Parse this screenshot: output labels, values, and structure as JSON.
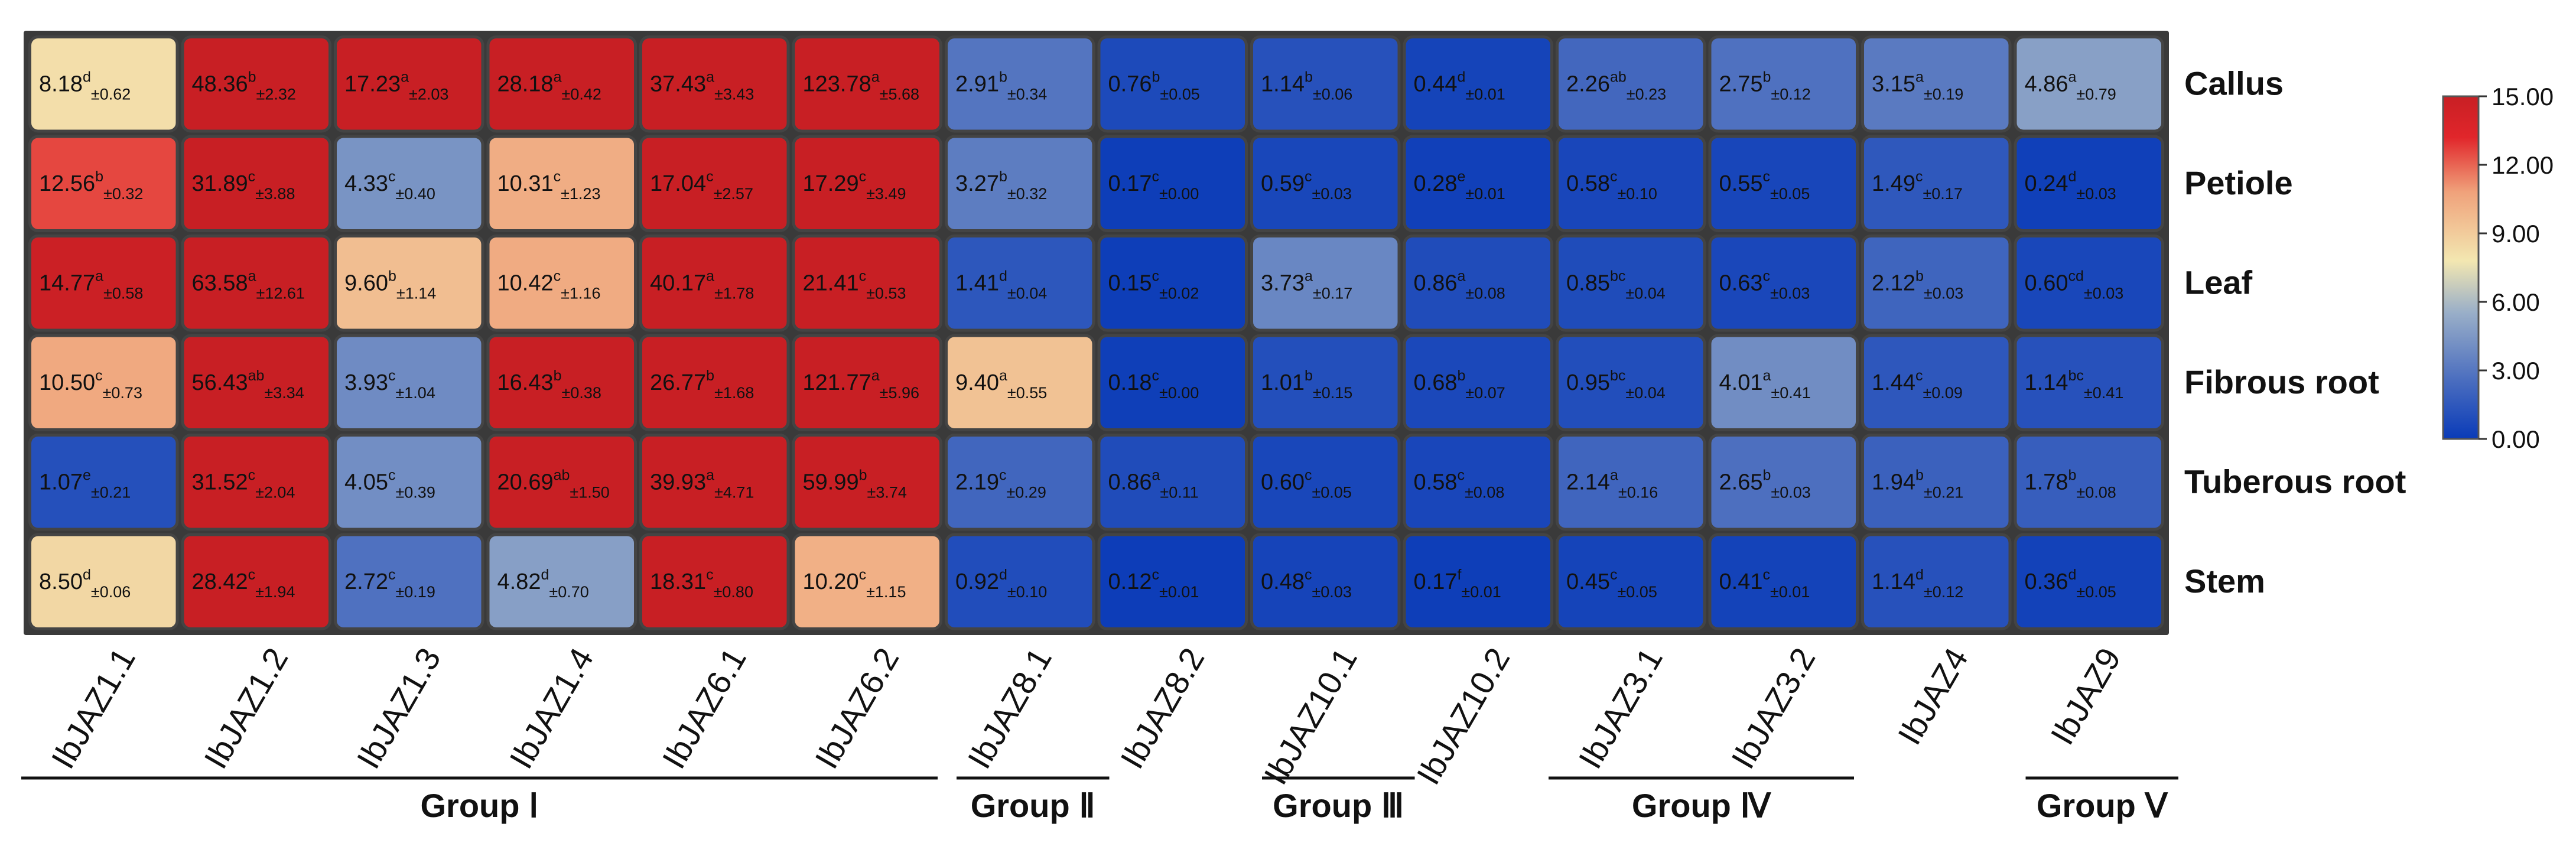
{
  "chart_data": {
    "type": "heatmap",
    "title": "",
    "rows": [
      "Callus",
      "Petiole",
      "Leaf",
      "Fibrous root",
      "Tuberous root",
      "Stem"
    ],
    "columns": [
      "IbJAZ1.1",
      "IbJAZ1.2",
      "IbJAZ1.3",
      "IbJAZ1.4",
      "IbJAZ6.1",
      "IbJAZ6.2",
      "IbJAZ8.1",
      "IbJAZ8.2",
      "IbJAZ10.1",
      "IbJAZ10.2",
      "IbJAZ3.1",
      "IbJAZ3.2",
      "IbJAZ4",
      "IbJAZ9"
    ],
    "values": [
      [
        8.18,
        48.36,
        17.23,
        28.18,
        37.43,
        123.78,
        2.91,
        0.76,
        1.14,
        0.44,
        2.26,
        2.75,
        3.15,
        4.86
      ],
      [
        12.56,
        31.89,
        4.33,
        10.31,
        17.04,
        17.29,
        3.27,
        0.17,
        0.59,
        0.28,
        0.58,
        0.55,
        1.49,
        0.24
      ],
      [
        14.77,
        63.58,
        9.6,
        10.42,
        40.17,
        21.41,
        1.41,
        0.15,
        3.73,
        0.86,
        0.85,
        0.63,
        2.12,
        0.6
      ],
      [
        10.5,
        56.43,
        3.93,
        16.43,
        26.77,
        121.77,
        9.4,
        0.18,
        1.01,
        0.68,
        0.95,
        4.01,
        1.44,
        1.14
      ],
      [
        1.07,
        31.52,
        4.05,
        20.69,
        39.93,
        59.99,
        2.19,
        0.86,
        0.6,
        0.58,
        2.14,
        2.65,
        1.94,
        1.78
      ],
      [
        8.5,
        28.42,
        2.72,
        4.82,
        18.31,
        10.2,
        0.92,
        0.12,
        0.48,
        0.17,
        0.45,
        0.41,
        1.14,
        0.36
      ]
    ],
    "value_labels": [
      [
        "8.18",
        "48.36",
        "17.23",
        "28.18",
        "37.43",
        "123.78",
        "2.91",
        "0.76",
        "1.14",
        "0.44",
        "2.26",
        "2.75",
        "3.15",
        "4.86"
      ],
      [
        "12.56",
        "31.89",
        "4.33",
        "10.31",
        "17.04",
        "17.29",
        "3.27",
        "0.17",
        "0.59",
        "0.28",
        "0.58",
        "0.55",
        "1.49",
        "0.24"
      ],
      [
        "14.77",
        "63.58",
        "9.60",
        "10.42",
        "40.17",
        "21.41",
        "1.41",
        "0.15",
        "3.73",
        "0.86",
        "0.85",
        "0.63",
        "2.12",
        "0.60"
      ],
      [
        "10.50",
        "56.43",
        "3.93",
        "16.43",
        "26.77",
        "121.77",
        "9.40",
        "0.18",
        "1.01",
        "0.68",
        "0.95",
        "4.01",
        "1.44",
        "1.14"
      ],
      [
        "1.07",
        "31.52",
        "4.05",
        "20.69",
        "39.93",
        "59.99",
        "2.19",
        "0.86",
        "0.60",
        "0.58",
        "2.14",
        "2.65",
        "1.94",
        "1.78"
      ],
      [
        "8.50",
        "28.42",
        "2.72",
        "4.82",
        "18.31",
        "10.20",
        "0.92",
        "0.12",
        "0.48",
        "0.17",
        "0.45",
        "0.41",
        "1.14",
        "0.36"
      ]
    ],
    "letters": [
      [
        "d",
        "b",
        "a",
        "a",
        "a",
        "a",
        "b",
        "b",
        "b",
        "d",
        "ab",
        "b",
        "a",
        "a"
      ],
      [
        "b",
        "c",
        "c",
        "c",
        "c",
        "c",
        "b",
        "c",
        "c",
        "e",
        "c",
        "c",
        "c",
        "d"
      ],
      [
        "a",
        "a",
        "b",
        "c",
        "a",
        "c",
        "d",
        "c",
        "a",
        "a",
        "bc",
        "c",
        "b",
        "cd"
      ],
      [
        "c",
        "ab",
        "c",
        "b",
        "b",
        "a",
        "a",
        "c",
        "b",
        "b",
        "bc",
        "a",
        "c",
        "bc"
      ],
      [
        "e",
        "c",
        "c",
        "ab",
        "a",
        "b",
        "c",
        "a",
        "c",
        "c",
        "a",
        "b",
        "b",
        "b"
      ],
      [
        "d",
        "c",
        "c",
        "d",
        "c",
        "c",
        "d",
        "c",
        "c",
        "f",
        "c",
        "c",
        "d",
        "d"
      ]
    ],
    "errors": [
      [
        "±0.62",
        "±2.32",
        "±2.03",
        "±0.42",
        "±3.43",
        "±5.68",
        "±0.34",
        "±0.05",
        "±0.06",
        "±0.01",
        "±0.23",
        "±0.12",
        "±0.19",
        "±0.79"
      ],
      [
        "±0.32",
        "±3.88",
        "±0.40",
        "±1.23",
        "±2.57",
        "±3.49",
        "±0.32",
        "±0.00",
        "±0.03",
        "±0.01",
        "±0.10",
        "±0.05",
        "±0.17",
        "±0.03"
      ],
      [
        "±0.58",
        "±12.61",
        "±1.14",
        "±1.16",
        "±1.78",
        "±0.53",
        "±0.04",
        "±0.02",
        "±0.17",
        "±0.08",
        "±0.04",
        "±0.03",
        "±0.03",
        "±0.03"
      ],
      [
        "±0.73",
        "±3.34",
        "±1.04",
        "±0.38",
        "±1.68",
        "±5.96",
        "±0.55",
        "±0.00",
        "±0.15",
        "±0.07",
        "±0.04",
        "±0.41",
        "±0.09",
        "±0.41"
      ],
      [
        "±0.21",
        "±2.04",
        "±0.39",
        "±1.50",
        "±4.71",
        "±3.74",
        "±0.29",
        "±0.11",
        "±0.05",
        "±0.08",
        "±0.16",
        "±0.03",
        "±0.21",
        "±0.08"
      ],
      [
        "±0.06",
        "±1.94",
        "±0.19",
        "±0.70",
        "±0.80",
        "±1.15",
        "±0.10",
        "±0.01",
        "±0.03",
        "±0.01",
        "±0.05",
        "±0.01",
        "±0.12",
        "±0.05"
      ]
    ],
    "groups": [
      {
        "label": "Group Ⅰ",
        "start": 0,
        "end": 5
      },
      {
        "label": "Group Ⅱ",
        "start": 6,
        "end": 6
      },
      {
        "label": "Group Ⅲ",
        "start": 8,
        "end": 8
      },
      {
        "label": "Group Ⅳ",
        "start": 10,
        "end": 11
      },
      {
        "label": "Group Ⅴ",
        "start": 13,
        "end": 13
      }
    ],
    "colorbar": {
      "min": 0,
      "max": 15,
      "ticks": [
        "15.00",
        "12.00",
        "9.00",
        "6.00",
        "3.00",
        "0.00"
      ],
      "colors": [
        "#0a3bb8",
        "#4a6dbf",
        "#9aafc8",
        "#f3e7b1",
        "#f0a27b",
        "#e1262b",
        "#c81f24"
      ]
    }
  }
}
